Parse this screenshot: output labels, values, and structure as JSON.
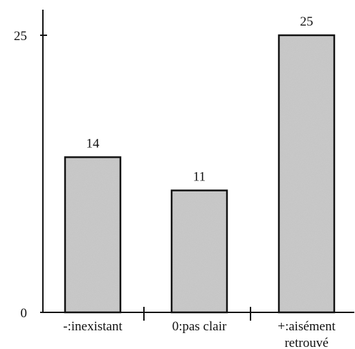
{
  "chart_data": {
    "type": "bar",
    "categories": [
      [
        "-:inexistant"
      ],
      [
        "0:pas clair"
      ],
      [
        "+:aisément",
        "retrouvé"
      ]
    ],
    "values": [
      14,
      11,
      25
    ],
    "data_labels": [
      "14",
      "11",
      "25"
    ],
    "title": "",
    "xlabel": "",
    "ylabel": "",
    "ylim": [
      0,
      25
    ],
    "yticks": [
      {
        "value": 0,
        "label": "0"
      },
      {
        "value": 25,
        "label": "25"
      }
    ],
    "grid": false,
    "legend": "none",
    "colors": {
      "bar_fill": "#c8c8c8",
      "bar_stroke": "#111111",
      "axis": "#111111"
    }
  }
}
